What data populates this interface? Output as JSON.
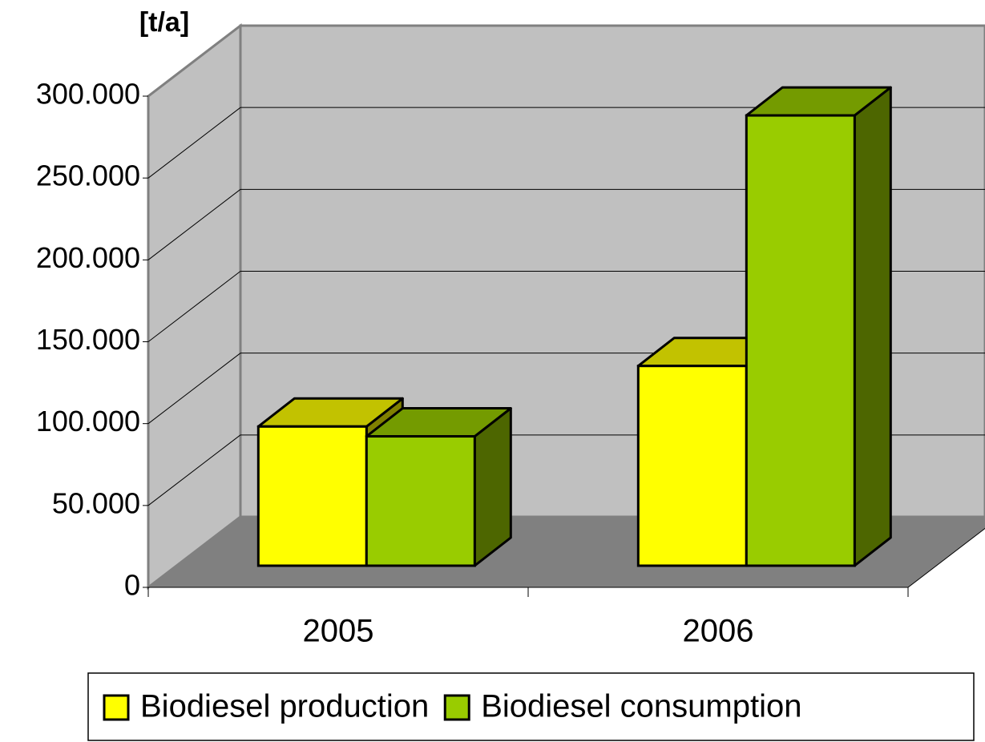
{
  "chart_data": {
    "type": "bar3d",
    "y_label": "[t/a]",
    "categories": [
      "2005",
      "2006"
    ],
    "series": [
      {
        "name": "Biodiesel production",
        "color": "#ffff00",
        "values": [
          85000,
          122000
        ]
      },
      {
        "name": "Biodiesel consumption",
        "color": "#99cc00",
        "values": [
          79000,
          275000
        ]
      }
    ],
    "ylim": [
      0,
      300000
    ],
    "yticks": [
      0,
      {
        "value": 50000,
        "label": "50.000"
      },
      {
        "value": 100000,
        "label": "100.000"
      },
      {
        "value": 150000,
        "label": "150.000"
      },
      {
        "value": 200000,
        "label": "200.000"
      },
      {
        "value": 250000,
        "label": "250.000"
      },
      {
        "value": 300000,
        "label": "300.000"
      }
    ],
    "grid": true,
    "legend": "bottom"
  }
}
